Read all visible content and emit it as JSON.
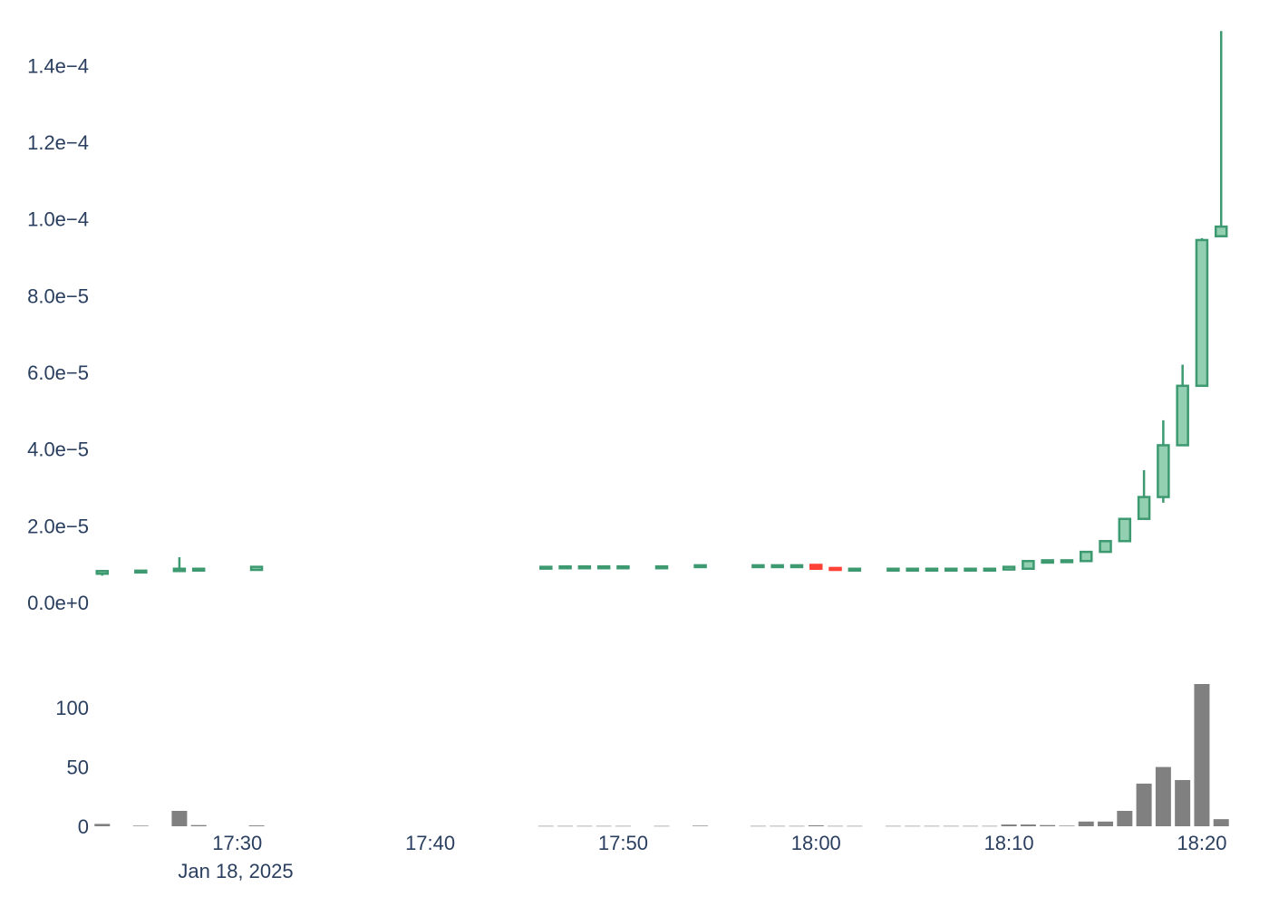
{
  "chart_data": [
    {
      "type": "candlestick",
      "x_unit": "minute",
      "ylim": [
        0,
        0.00015
      ],
      "y_ticks": [
        {
          "value": 0,
          "label": "0.0e+0"
        },
        {
          "value": 2e-05,
          "label": "2.0e−5"
        },
        {
          "value": 4e-05,
          "label": "4.0e−5"
        },
        {
          "value": 6e-05,
          "label": "6.0e−5"
        },
        {
          "value": 8e-05,
          "label": "8.0e−5"
        },
        {
          "value": 0.0001,
          "label": "1.0e−4"
        },
        {
          "value": 0.00012,
          "label": "1.2e−4"
        },
        {
          "value": 0.00014,
          "label": "1.4e−4"
        }
      ],
      "increasing_color": "#3d9970",
      "increasing_fill": "#93cfb1",
      "decreasing_color": "#ff4136",
      "candles": [
        {
          "t": "17:23",
          "o": 7.5e-06,
          "h": 8.5e-06,
          "l": 7e-06,
          "c": 8.2e-06
        },
        {
          "t": "17:25",
          "o": 8e-06,
          "h": 8.4e-06,
          "l": 8e-06,
          "c": 8.3e-06
        },
        {
          "t": "17:27",
          "o": 8.2e-06,
          "h": 1.18e-05,
          "l": 8e-06,
          "c": 8.8e-06
        },
        {
          "t": "17:28",
          "o": 8.5e-06,
          "h": 8.8e-06,
          "l": 8.5e-06,
          "c": 8.8e-06
        },
        {
          "t": "17:31",
          "o": 8.5e-06,
          "h": 9.3e-06,
          "l": 8.5e-06,
          "c": 9.3e-06
        },
        {
          "t": "17:46",
          "o": 9.1e-06,
          "h": 9.3e-06,
          "l": 9.1e-06,
          "c": 9.3e-06
        },
        {
          "t": "17:47",
          "o": 9.2e-06,
          "h": 9.4e-06,
          "l": 9.2e-06,
          "c": 9.4e-06
        },
        {
          "t": "17:48",
          "o": 9.2e-06,
          "h": 9.4e-06,
          "l": 9.2e-06,
          "c": 9.4e-06
        },
        {
          "t": "17:49",
          "o": 9.2e-06,
          "h": 9.4e-06,
          "l": 9.2e-06,
          "c": 9.4e-06
        },
        {
          "t": "17:50",
          "o": 9.2e-06,
          "h": 9.4e-06,
          "l": 9.2e-06,
          "c": 9.4e-06
        },
        {
          "t": "17:52",
          "o": 9.2e-06,
          "h": 9.4e-06,
          "l": 9.2e-06,
          "c": 9.4e-06
        },
        {
          "t": "17:54",
          "o": 9.3e-06,
          "h": 9.7e-06,
          "l": 9.3e-06,
          "c": 9.7e-06
        },
        {
          "t": "17:57",
          "o": 9.5e-06,
          "h": 9.7e-06,
          "l": 9.5e-06,
          "c": 9.7e-06
        },
        {
          "t": "17:58",
          "o": 9.5e-06,
          "h": 9.7e-06,
          "l": 9.5e-06,
          "c": 9.7e-06
        },
        {
          "t": "17:59",
          "o": 9.5e-06,
          "h": 9.7e-06,
          "l": 9.5e-06,
          "c": 9.7e-06
        },
        {
          "t": "18:00",
          "o": 9.8e-06,
          "h": 9.8e-06,
          "l": 8.8e-06,
          "c": 8.8e-06
        },
        {
          "t": "18:01",
          "o": 9e-06,
          "h": 9e-06,
          "l": 8.5e-06,
          "c": 8.5e-06
        },
        {
          "t": "18:02",
          "o": 8.6e-06,
          "h": 8.8e-06,
          "l": 8.6e-06,
          "c": 8.8e-06
        },
        {
          "t": "18:04",
          "o": 8.6e-06,
          "h": 8.8e-06,
          "l": 8.6e-06,
          "c": 8.8e-06
        },
        {
          "t": "18:05",
          "o": 8.6e-06,
          "h": 8.8e-06,
          "l": 8.6e-06,
          "c": 8.8e-06
        },
        {
          "t": "18:06",
          "o": 8.6e-06,
          "h": 8.8e-06,
          "l": 8.6e-06,
          "c": 8.8e-06
        },
        {
          "t": "18:07",
          "o": 8.6e-06,
          "h": 8.8e-06,
          "l": 8.6e-06,
          "c": 8.8e-06
        },
        {
          "t": "18:08",
          "o": 8.6e-06,
          "h": 8.8e-06,
          "l": 8.6e-06,
          "c": 8.8e-06
        },
        {
          "t": "18:09",
          "o": 8.6e-06,
          "h": 8.8e-06,
          "l": 8.6e-06,
          "c": 8.8e-06
        },
        {
          "t": "18:10",
          "o": 8.6e-06,
          "h": 9.3e-06,
          "l": 8.6e-06,
          "c": 9.3e-06
        },
        {
          "t": "18:11",
          "o": 8.8e-06,
          "h": 1.1e-05,
          "l": 8.8e-06,
          "c": 1.08e-05
        },
        {
          "t": "18:12",
          "o": 1.04e-05,
          "h": 1.1e-05,
          "l": 1.04e-05,
          "c": 1.1e-05
        },
        {
          "t": "18:13",
          "o": 1.06e-05,
          "h": 1.1e-05,
          "l": 1.06e-05,
          "c": 1.1e-05
        },
        {
          "t": "18:14",
          "o": 1.08e-05,
          "h": 1.32e-05,
          "l": 1.08e-05,
          "c": 1.32e-05
        },
        {
          "t": "18:15",
          "o": 1.32e-05,
          "h": 1.62e-05,
          "l": 1.32e-05,
          "c": 1.6e-05
        },
        {
          "t": "18:16",
          "o": 1.6e-05,
          "h": 2.2e-05,
          "l": 1.6e-05,
          "c": 2.18e-05
        },
        {
          "t": "18:17",
          "o": 2.18e-05,
          "h": 3.45e-05,
          "l": 2.18e-05,
          "c": 2.75e-05
        },
        {
          "t": "18:18",
          "o": 2.75e-05,
          "h": 4.75e-05,
          "l": 2.6e-05,
          "c": 4.1e-05
        },
        {
          "t": "18:19",
          "o": 4.1e-05,
          "h": 6.2e-05,
          "l": 4.1e-05,
          "c": 5.65e-05
        },
        {
          "t": "18:20",
          "o": 5.65e-05,
          "h": 9.5e-05,
          "l": 5.65e-05,
          "c": 9.45e-05
        },
        {
          "t": "18:21",
          "o": 9.55e-05,
          "h": 0.000149,
          "l": 9.55e-05,
          "c": 9.8e-05
        }
      ]
    },
    {
      "type": "bar",
      "x_unit": "minute",
      "ylim": [
        0,
        120
      ],
      "y_ticks": [
        {
          "value": 0,
          "label": "0"
        },
        {
          "value": 50,
          "label": "50"
        },
        {
          "value": 100,
          "label": "100"
        }
      ],
      "bar_color": "#808080",
      "bars": [
        {
          "t": "17:23",
          "v": 2
        },
        {
          "t": "17:25",
          "v": 0.5
        },
        {
          "t": "17:27",
          "v": 13
        },
        {
          "t": "17:28",
          "v": 1
        },
        {
          "t": "17:31",
          "v": 0.7
        },
        {
          "t": "17:46",
          "v": 0.3
        },
        {
          "t": "17:47",
          "v": 0.3
        },
        {
          "t": "17:48",
          "v": 0.3
        },
        {
          "t": "17:49",
          "v": 0.3
        },
        {
          "t": "17:50",
          "v": 0.3
        },
        {
          "t": "17:52",
          "v": 0.3
        },
        {
          "t": "17:54",
          "v": 0.5
        },
        {
          "t": "17:57",
          "v": 0.3
        },
        {
          "t": "17:58",
          "v": 0.3
        },
        {
          "t": "17:59",
          "v": 0.3
        },
        {
          "t": "18:00",
          "v": 0.8
        },
        {
          "t": "18:01",
          "v": 0.3
        },
        {
          "t": "18:02",
          "v": 0.3
        },
        {
          "t": "18:04",
          "v": 0.3
        },
        {
          "t": "18:05",
          "v": 0.3
        },
        {
          "t": "18:06",
          "v": 0.3
        },
        {
          "t": "18:07",
          "v": 0.3
        },
        {
          "t": "18:08",
          "v": 0.3
        },
        {
          "t": "18:09",
          "v": 0.3
        },
        {
          "t": "18:10",
          "v": 1.5
        },
        {
          "t": "18:11",
          "v": 1.5
        },
        {
          "t": "18:12",
          "v": 1
        },
        {
          "t": "18:13",
          "v": 0.5
        },
        {
          "t": "18:14",
          "v": 4
        },
        {
          "t": "18:15",
          "v": 4
        },
        {
          "t": "18:16",
          "v": 13
        },
        {
          "t": "18:17",
          "v": 36
        },
        {
          "t": "18:18",
          "v": 50
        },
        {
          "t": "18:19",
          "v": 39
        },
        {
          "t": "18:20",
          "v": 120
        },
        {
          "t": "18:21",
          "v": 6
        }
      ]
    }
  ],
  "x_axis": {
    "range": [
      "17:22.4",
      "18:21.6"
    ],
    "ticks": [
      {
        "t": "17:30",
        "label": "17:30"
      },
      {
        "t": "17:40",
        "label": "17:40"
      },
      {
        "t": "17:50",
        "label": "17:50"
      },
      {
        "t": "18:00",
        "label": "18:00"
      },
      {
        "t": "18:10",
        "label": "18:10"
      },
      {
        "t": "18:20",
        "label": "18:20"
      }
    ],
    "date_label": "Jan 18, 2025",
    "grid": false
  }
}
